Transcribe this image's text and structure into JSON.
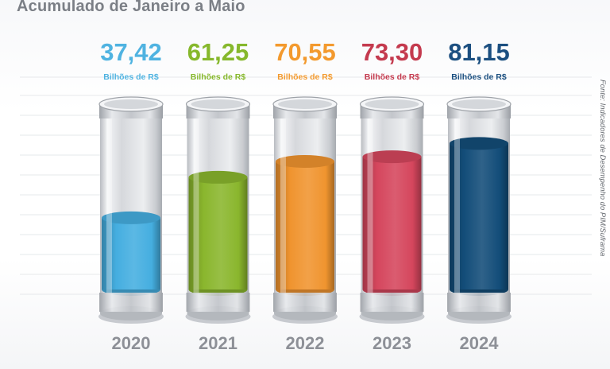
{
  "title": "Acumulado de Janeiro a Maio",
  "source": "Fonte: Indicadores de Desempenho do PIM/Suframa",
  "chart_data": {
    "type": "bar",
    "title": "Acumulado de Janeiro a Maio",
    "categories": [
      "2020",
      "2021",
      "2022",
      "2023",
      "2024"
    ],
    "values": [
      37.42,
      61.25,
      70.55,
      73.3,
      81.15
    ],
    "value_labels": [
      "37,42",
      "61,25",
      "70,55",
      "73,30",
      "81,15"
    ],
    "unit": "Bilhões de R$",
    "colors": [
      "#45aee0",
      "#8ab62d",
      "#f0942f",
      "#d5465d",
      "#134d79"
    ],
    "label_colors": [
      "#4fb3e1",
      "#86b82c",
      "#f39a2e",
      "#c43a4e",
      "#1b4f80"
    ],
    "ylim": [
      0,
      100
    ],
    "grid": true,
    "legend": "none"
  }
}
